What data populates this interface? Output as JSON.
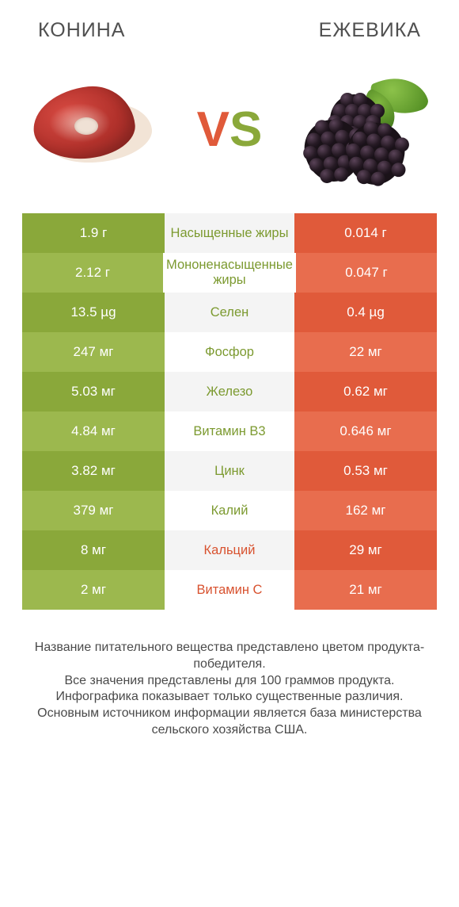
{
  "titles": {
    "left": "КОНИНА",
    "right": "ЕЖЕВИКА"
  },
  "vs": {
    "v": "V",
    "s": "S"
  },
  "colors": {
    "green_dark": "#8aa83a",
    "green_light": "#9cb84e",
    "orange_dark": "#e05a3a",
    "orange_light": "#e86d4e",
    "label_green": "#7c9a30",
    "label_orange": "#d8522f",
    "row_band_a": "#f4f4f4",
    "row_band_b": "#ffffff"
  },
  "rows": [
    {
      "left": "1.9 г",
      "label": "Насыщенные жиры",
      "right": "0.014 г",
      "winner": "left"
    },
    {
      "left": "2.12 г",
      "label": "Мононенасыщенные жиры",
      "right": "0.047 г",
      "winner": "left"
    },
    {
      "left": "13.5 µg",
      "label": "Селен",
      "right": "0.4 µg",
      "winner": "left"
    },
    {
      "left": "247 мг",
      "label": "Фосфор",
      "right": "22 мг",
      "winner": "left"
    },
    {
      "left": "5.03 мг",
      "label": "Железо",
      "right": "0.62 мг",
      "winner": "left"
    },
    {
      "left": "4.84 мг",
      "label": "Витамин B3",
      "right": "0.646 мг",
      "winner": "left"
    },
    {
      "left": "3.82 мг",
      "label": "Цинк",
      "right": "0.53 мг",
      "winner": "left"
    },
    {
      "left": "379 мг",
      "label": "Калий",
      "right": "162 мг",
      "winner": "left"
    },
    {
      "left": "8 мг",
      "label": "Кальций",
      "right": "29 мг",
      "winner": "right"
    },
    {
      "left": "2 мг",
      "label": "Витамин C",
      "right": "21 мг",
      "winner": "right"
    }
  ],
  "footer": [
    "Название питательного вещества представлено цветом продукта-победителя.",
    "Все значения представлены для 100 граммов продукта.",
    "Инфографика показывает только существенные различия.",
    "Основным источником информации является база министерства сельского хозяйства США."
  ]
}
